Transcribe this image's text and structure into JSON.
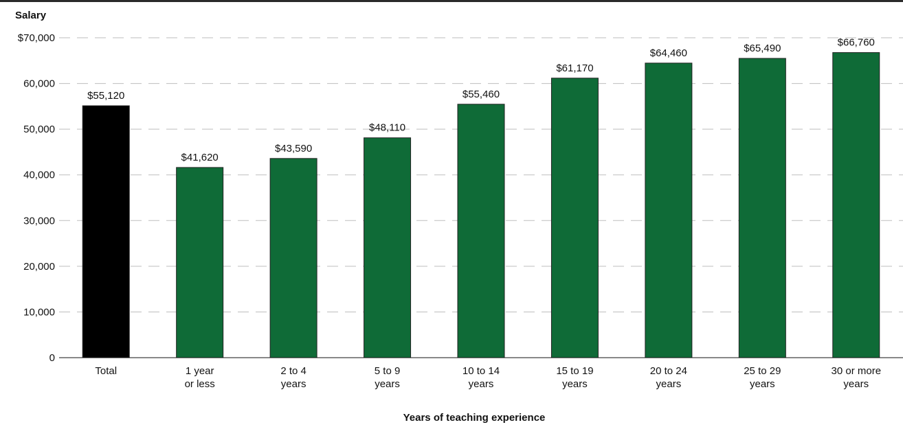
{
  "chart_data": {
    "type": "bar",
    "title": "",
    "ylabel": "Salary",
    "xlabel": "Years of teaching experience",
    "ylim": [
      0,
      70000
    ],
    "yticks": [
      0,
      10000,
      20000,
      30000,
      40000,
      50000,
      60000,
      70000
    ],
    "ytick_labels": [
      "0",
      "10,000",
      "20,000",
      "30,000",
      "40,000",
      "50,000",
      "60,000",
      "$70,000"
    ],
    "grid": true,
    "categories": [
      [
        "Total"
      ],
      [
        "1 year",
        "or less"
      ],
      [
        "2 to 4",
        "years"
      ],
      [
        "5 to 9",
        "years"
      ],
      [
        "10 to 14",
        "years"
      ],
      [
        "15 to 19",
        "years"
      ],
      [
        "20 to 24",
        "years"
      ],
      [
        "25 to 29",
        "years"
      ],
      [
        "30 or more",
        "years"
      ]
    ],
    "values": [
      55120,
      41620,
      43590,
      48110,
      55460,
      61170,
      64460,
      65490,
      66760
    ],
    "value_labels": [
      "$55,120",
      "$41,620",
      "$43,590",
      "$48,110",
      "$55,460",
      "$61,170",
      "$64,460",
      "$65,490",
      "$66,760"
    ],
    "colors": [
      "#000000",
      "#0f6b37",
      "#0f6b37",
      "#0f6b37",
      "#0f6b37",
      "#0f6b37",
      "#0f6b37",
      "#0f6b37",
      "#0f6b37"
    ]
  }
}
